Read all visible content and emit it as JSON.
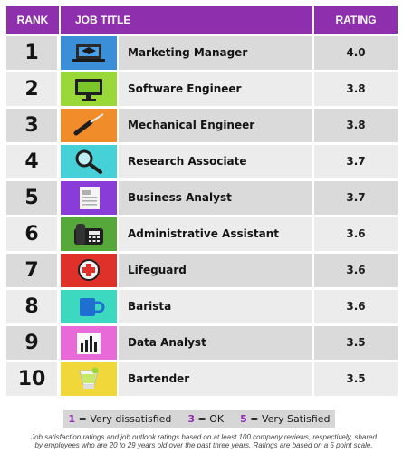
{
  "header": {
    "rank": "RANK",
    "job_title": "JOB TITLE",
    "rating": "RATING"
  },
  "rows": [
    {
      "rank": "1",
      "title": "Marketing Manager",
      "rating": "4.0",
      "icon": "laptop-icon",
      "icon_bg": "#3a8fd8"
    },
    {
      "rank": "2",
      "title": "Software Engineer",
      "rating": "3.8",
      "icon": "monitor-icon",
      "icon_bg": "#9ad83a"
    },
    {
      "rank": "3",
      "title": "Mechanical Engineer",
      "rating": "3.8",
      "icon": "screwdriver-icon",
      "icon_bg": "#f08c2a"
    },
    {
      "rank": "4",
      "title": "Research Associate",
      "rating": "3.7",
      "icon": "magnifying-glass-icon",
      "icon_bg": "#46d0d8"
    },
    {
      "rank": "5",
      "title": "Business Analyst",
      "rating": "3.7",
      "icon": "document-icon",
      "icon_bg": "#8a3cd8"
    },
    {
      "rank": "6",
      "title": "Administrative Assistant",
      "rating": "3.6",
      "icon": "desk-phone-icon",
      "icon_bg": "#56a83a"
    },
    {
      "rank": "7",
      "title": "Lifeguard",
      "rating": "3.6",
      "icon": "first-aid-icon",
      "icon_bg": "#e0302a"
    },
    {
      "rank": "8",
      "title": "Barista",
      "rating": "3.6",
      "icon": "coffee-mug-icon",
      "icon_bg": "#3cd8c0"
    },
    {
      "rank": "9",
      "title": "Data Analyst",
      "rating": "3.5",
      "icon": "bar-chart-icon",
      "icon_bg": "#e86ad8"
    },
    {
      "rank": "10",
      "title": "Bartender",
      "rating": "3.5",
      "icon": "cocktail-glass-icon",
      "icon_bg": "#f0d83a"
    }
  ],
  "legend": {
    "one_num": "1",
    "one_text": "= Very dissatisfied",
    "three_num": "3",
    "three_text": "= OK",
    "five_num": "5",
    "five_text": "= Very Satisfied"
  },
  "footnote": "Job satisfaction ratings and job outlook ratings based on at least 100 company reviews, respectively, shared by employees who are 20 to 29 years old over the past three years. Ratings are based on a 5 point scale.",
  "colors": {
    "accent": "#8e2fae",
    "row_dark": "#dadada",
    "row_light": "#ececec"
  }
}
